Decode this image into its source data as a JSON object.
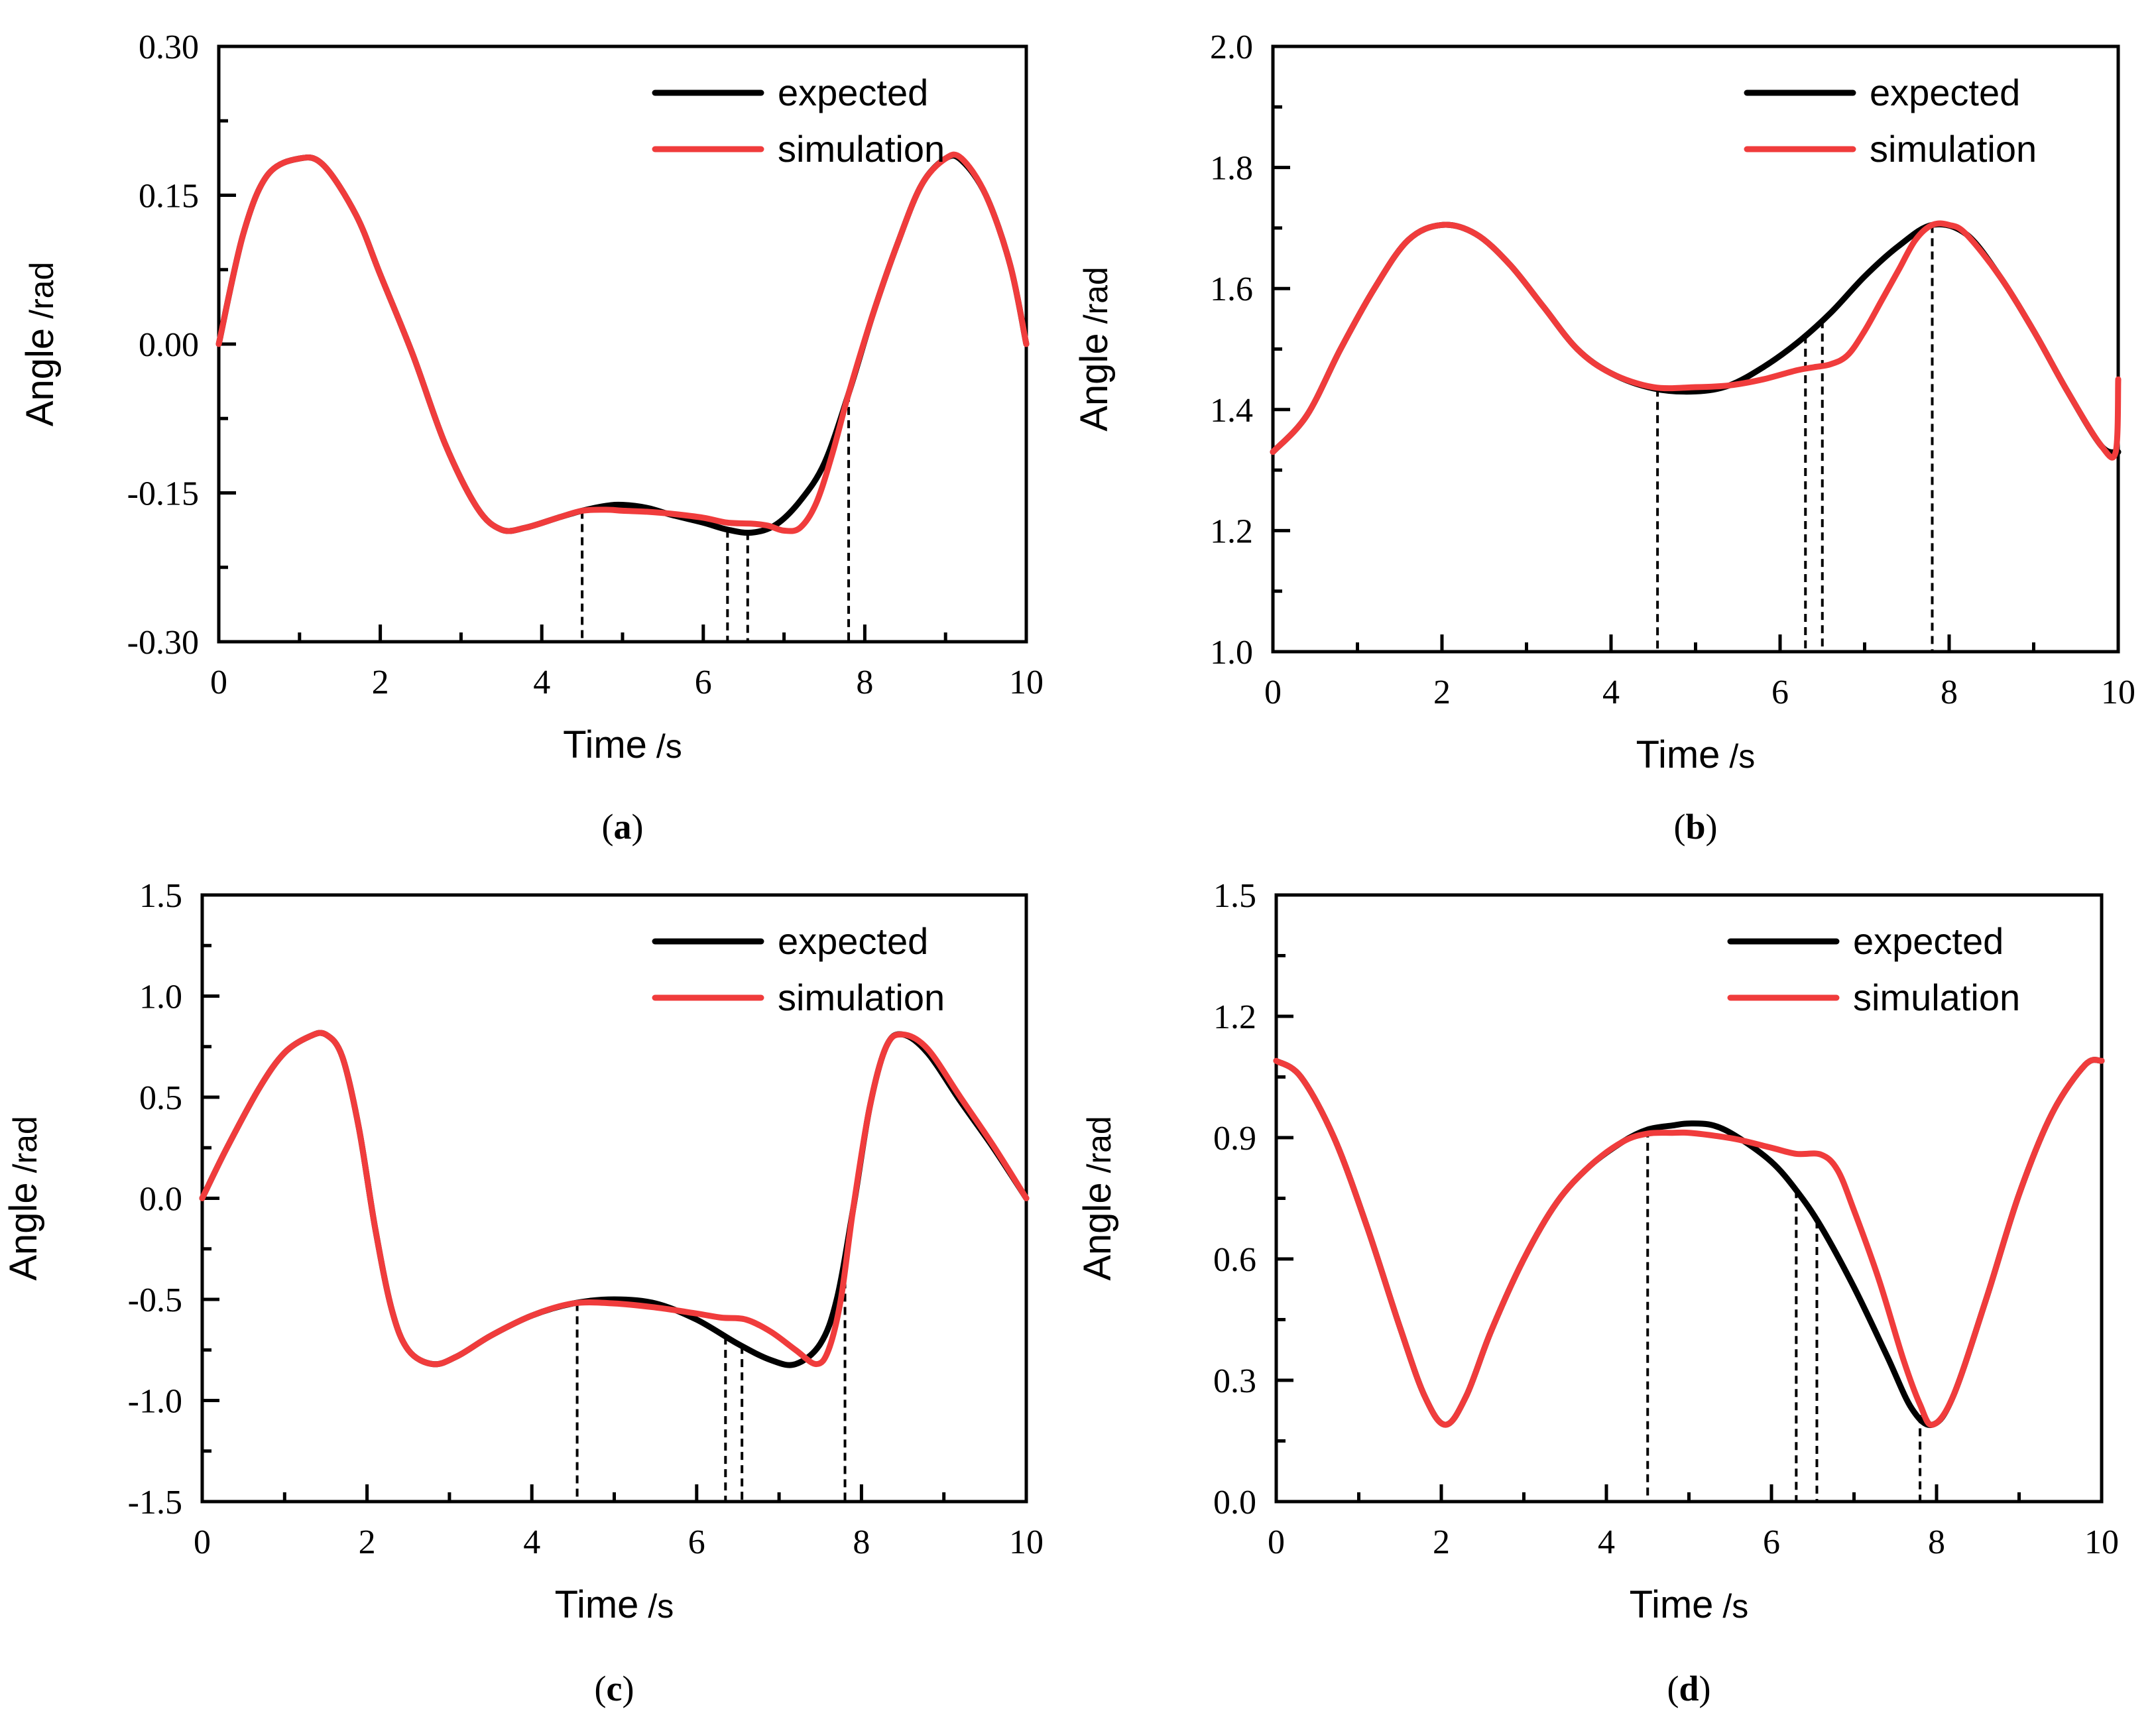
{
  "colors": {
    "expected": "#000000",
    "simulation": "#f03c3c"
  },
  "chart_data": [
    {
      "type": "line",
      "panel_label": "a",
      "xlabel": "Time",
      "xunit": "/s",
      "ylabel": "Angle",
      "yunit": "/rad",
      "xlim": [
        0,
        10
      ],
      "ylim": [
        -0.3,
        0.3
      ],
      "xticks": [
        "0",
        "2",
        "4",
        "6",
        "8",
        "10"
      ],
      "yticks": [
        "-0.30",
        "-0.15",
        "0.00",
        "0.15",
        "0.30"
      ],
      "legend": {
        "position": "top-right",
        "entries": [
          "expected",
          "simulation"
        ]
      },
      "markers_x": [
        4.5,
        6.3,
        6.55,
        7.8
      ],
      "series": [
        {
          "name": "expected",
          "color": "#000000",
          "x": [
            0,
            0.3,
            0.6,
            1.0,
            1.3,
            1.7,
            2.0,
            2.4,
            2.8,
            3.2,
            3.5,
            3.8,
            4.2,
            4.5,
            4.8,
            5.0,
            5.3,
            5.6,
            6.0,
            6.3,
            6.6,
            6.9,
            7.2,
            7.5,
            7.8,
            8.1,
            8.4,
            8.7,
            9.0,
            9.2,
            9.5,
            9.8,
            10.0
          ],
          "y": [
            0.0,
            0.11,
            0.17,
            0.187,
            0.18,
            0.13,
            0.07,
            -0.01,
            -0.1,
            -0.165,
            -0.187,
            -0.185,
            -0.175,
            -0.168,
            -0.163,
            -0.162,
            -0.165,
            -0.172,
            -0.18,
            -0.187,
            -0.19,
            -0.182,
            -0.158,
            -0.12,
            -0.05,
            0.03,
            0.1,
            0.16,
            0.187,
            0.185,
            0.15,
            0.08,
            0.0
          ]
        },
        {
          "name": "simulation",
          "color": "#f03c3c",
          "x": [
            0,
            0.3,
            0.6,
            1.0,
            1.3,
            1.7,
            2.0,
            2.4,
            2.8,
            3.2,
            3.5,
            3.8,
            4.2,
            4.5,
            4.8,
            5.0,
            5.3,
            5.6,
            6.0,
            6.3,
            6.6,
            6.8,
            7.0,
            7.2,
            7.4,
            7.6,
            7.8,
            8.1,
            8.4,
            8.7,
            9.0,
            9.2,
            9.5,
            9.8,
            10.0
          ],
          "y": [
            0.0,
            0.11,
            0.17,
            0.187,
            0.18,
            0.13,
            0.07,
            -0.01,
            -0.1,
            -0.165,
            -0.187,
            -0.185,
            -0.175,
            -0.168,
            -0.167,
            -0.168,
            -0.169,
            -0.171,
            -0.175,
            -0.18,
            -0.181,
            -0.183,
            -0.188,
            -0.185,
            -0.16,
            -0.11,
            -0.05,
            0.03,
            0.1,
            0.16,
            0.187,
            0.187,
            0.15,
            0.08,
            0.0
          ]
        }
      ]
    },
    {
      "type": "line",
      "panel_label": "b",
      "xlabel": "Time",
      "xunit": "/s",
      "ylabel": "Angle",
      "yunit": "/rad",
      "xlim": [
        0,
        10
      ],
      "ylim": [
        1.0,
        2.0
      ],
      "xticks": [
        "0",
        "2",
        "4",
        "6",
        "8",
        "10"
      ],
      "yticks": [
        "1.0",
        "1.2",
        "1.4",
        "1.6",
        "1.8",
        "2.0"
      ],
      "legend": {
        "position": "top-right",
        "entries": [
          "expected",
          "simulation"
        ]
      },
      "markers_x": [
        4.55,
        6.3,
        6.5,
        7.8
      ],
      "series": [
        {
          "name": "expected",
          "color": "#000000",
          "x": [
            0,
            0.4,
            0.8,
            1.2,
            1.6,
            2.0,
            2.4,
            2.8,
            3.2,
            3.6,
            4.0,
            4.5,
            5.0,
            5.4,
            5.8,
            6.2,
            6.6,
            7.0,
            7.4,
            7.8,
            8.2,
            8.6,
            9.0,
            9.4,
            9.8,
            10.0
          ],
          "y": [
            1.33,
            1.39,
            1.5,
            1.6,
            1.68,
            1.705,
            1.69,
            1.64,
            1.57,
            1.5,
            1.46,
            1.435,
            1.43,
            1.44,
            1.47,
            1.51,
            1.56,
            1.62,
            1.67,
            1.705,
            1.69,
            1.62,
            1.53,
            1.43,
            1.34,
            1.33
          ]
        },
        {
          "name": "simulation",
          "color": "#f03c3c",
          "x": [
            0,
            0.4,
            0.8,
            1.2,
            1.6,
            2.0,
            2.4,
            2.8,
            3.2,
            3.6,
            4.0,
            4.5,
            5.0,
            5.4,
            5.8,
            6.2,
            6.4,
            6.6,
            6.8,
            7.0,
            7.2,
            7.4,
            7.6,
            7.8,
            8.0,
            8.2,
            8.6,
            9.0,
            9.4,
            9.8,
            9.97,
            10.0
          ],
          "y": [
            1.33,
            1.39,
            1.5,
            1.6,
            1.68,
            1.705,
            1.69,
            1.64,
            1.57,
            1.5,
            1.46,
            1.437,
            1.437,
            1.44,
            1.45,
            1.465,
            1.47,
            1.475,
            1.49,
            1.53,
            1.58,
            1.63,
            1.68,
            1.705,
            1.705,
            1.69,
            1.62,
            1.53,
            1.43,
            1.34,
            1.33,
            1.45
          ]
        }
      ]
    },
    {
      "type": "line",
      "panel_label": "c",
      "xlabel": "Time",
      "xunit": "/s",
      "ylabel": "Angle",
      "yunit": "/rad",
      "xlim": [
        0,
        10
      ],
      "ylim": [
        -1.5,
        1.5
      ],
      "xticks": [
        "0",
        "2",
        "4",
        "6",
        "8",
        "10"
      ],
      "yticks": [
        "-1.5",
        "-1.0",
        "-0.5",
        "0.0",
        "0.5",
        "1.0",
        "1.5"
      ],
      "legend": {
        "position": "top-right",
        "entries": [
          "expected",
          "simulation"
        ]
      },
      "markers_x": [
        4.55,
        6.35,
        6.55,
        7.8
      ],
      "series": [
        {
          "name": "expected",
          "color": "#000000",
          "x": [
            0,
            0.3,
            0.7,
            1.0,
            1.3,
            1.5,
            1.7,
            1.9,
            2.1,
            2.3,
            2.5,
            2.8,
            3.1,
            3.5,
            4.0,
            4.5,
            5.0,
            5.5,
            6.0,
            6.5,
            6.9,
            7.2,
            7.5,
            7.7,
            7.9,
            8.1,
            8.3,
            8.5,
            8.8,
            9.2,
            9.6,
            10.0
          ],
          "y": [
            0.0,
            0.25,
            0.55,
            0.72,
            0.8,
            0.81,
            0.7,
            0.35,
            -0.15,
            -0.55,
            -0.75,
            -0.82,
            -0.78,
            -0.68,
            -0.58,
            -0.52,
            -0.5,
            -0.52,
            -0.6,
            -0.72,
            -0.8,
            -0.82,
            -0.72,
            -0.5,
            -0.05,
            0.45,
            0.75,
            0.81,
            0.72,
            0.48,
            0.25,
            0.0
          ]
        },
        {
          "name": "simulation",
          "color": "#f03c3c",
          "x": [
            0,
            0.3,
            0.7,
            1.0,
            1.3,
            1.5,
            1.7,
            1.9,
            2.1,
            2.3,
            2.5,
            2.8,
            3.1,
            3.5,
            4.0,
            4.5,
            5.0,
            5.5,
            6.0,
            6.3,
            6.6,
            6.9,
            7.2,
            7.45,
            7.6,
            7.75,
            7.9,
            8.1,
            8.3,
            8.5,
            8.8,
            9.2,
            9.6,
            10.0
          ],
          "y": [
            0.0,
            0.25,
            0.55,
            0.72,
            0.8,
            0.81,
            0.7,
            0.35,
            -0.15,
            -0.55,
            -0.75,
            -0.82,
            -0.78,
            -0.68,
            -0.58,
            -0.52,
            -0.52,
            -0.54,
            -0.57,
            -0.59,
            -0.6,
            -0.66,
            -0.75,
            -0.82,
            -0.75,
            -0.5,
            -0.05,
            0.45,
            0.75,
            0.81,
            0.74,
            0.5,
            0.26,
            0.0
          ]
        }
      ]
    },
    {
      "type": "line",
      "panel_label": "d",
      "xlabel": "Time",
      "xunit": "/s",
      "ylabel": "Angle",
      "yunit": "/rad",
      "xlim": [
        0,
        10
      ],
      "ylim": [
        0.0,
        1.5
      ],
      "xticks": [
        "0",
        "2",
        "4",
        "6",
        "8",
        "10"
      ],
      "yticks": [
        "0.0",
        "0.3",
        "0.6",
        "0.9",
        "1.2",
        "1.5"
      ],
      "legend": {
        "position": "top-right",
        "entries": [
          "expected",
          "simulation"
        ]
      },
      "markers_x": [
        4.5,
        6.3,
        6.55,
        7.8
      ],
      "series": [
        {
          "name": "expected",
          "color": "#000000",
          "x": [
            0,
            0.3,
            0.7,
            1.1,
            1.5,
            1.8,
            2.05,
            2.3,
            2.6,
            3.0,
            3.4,
            3.8,
            4.2,
            4.5,
            4.8,
            5.0,
            5.3,
            5.6,
            6.0,
            6.3,
            6.6,
            7.0,
            7.4,
            7.7,
            7.95,
            8.2,
            8.6,
            9.0,
            9.4,
            9.8,
            10.0
          ],
          "y": [
            1.09,
            1.05,
            0.9,
            0.68,
            0.43,
            0.26,
            0.19,
            0.26,
            0.42,
            0.6,
            0.74,
            0.83,
            0.89,
            0.92,
            0.93,
            0.935,
            0.93,
            0.9,
            0.84,
            0.77,
            0.68,
            0.53,
            0.36,
            0.23,
            0.19,
            0.26,
            0.5,
            0.76,
            0.96,
            1.08,
            1.09
          ]
        },
        {
          "name": "simulation",
          "color": "#f03c3c",
          "x": [
            0,
            0.3,
            0.7,
            1.1,
            1.5,
            1.8,
            2.05,
            2.3,
            2.6,
            3.0,
            3.4,
            3.8,
            4.2,
            4.5,
            4.8,
            5.0,
            5.3,
            5.6,
            6.0,
            6.3,
            6.6,
            6.8,
            7.0,
            7.3,
            7.6,
            7.8,
            7.95,
            8.2,
            8.6,
            9.0,
            9.4,
            9.8,
            10.0
          ],
          "y": [
            1.09,
            1.05,
            0.9,
            0.68,
            0.43,
            0.26,
            0.19,
            0.26,
            0.42,
            0.6,
            0.74,
            0.83,
            0.89,
            0.91,
            0.912,
            0.912,
            0.905,
            0.895,
            0.875,
            0.86,
            0.858,
            0.82,
            0.72,
            0.55,
            0.35,
            0.24,
            0.19,
            0.26,
            0.5,
            0.76,
            0.96,
            1.08,
            1.09
          ]
        }
      ]
    }
  ]
}
